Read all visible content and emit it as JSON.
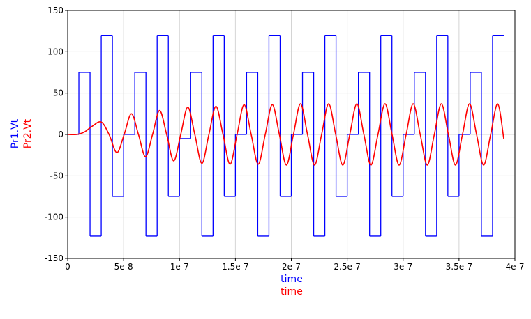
{
  "chart_data": {
    "type": "line",
    "xlim": [
      0,
      4e-07
    ],
    "ylim": [
      -150,
      150
    ],
    "xticks": [
      0,
      {
        "value": 5e-08,
        "label": "5e-8"
      },
      {
        "value": 1e-07,
        "label": "1e-7"
      },
      {
        "value": 1.5e-07,
        "label": "1.5e-7"
      },
      {
        "value": 2e-07,
        "label": "2e-7"
      },
      {
        "value": 2.5e-07,
        "label": "2.5e-7"
      },
      {
        "value": 3e-07,
        "label": "3e-7"
      },
      {
        "value": 3.5e-07,
        "label": "3.5e-7"
      },
      {
        "value": 4e-07,
        "label": "4e-7"
      }
    ],
    "yticks": [
      -150,
      -100,
      -50,
      0,
      50,
      100,
      150
    ],
    "grid": true,
    "series": [
      {
        "name": "Pr1.Vt",
        "x_label": "time",
        "color": "#0000ff",
        "draw": "steps-post",
        "x": [
          0,
          1e-08,
          2e-08,
          3e-08,
          4e-08,
          5e-08,
          6e-08,
          7e-08,
          8e-08,
          9e-08,
          1e-07,
          1.1e-07,
          1.2e-07,
          1.3e-07,
          1.4e-07,
          1.5e-07,
          1.6e-07,
          1.7e-07,
          1.8e-07,
          1.9e-07,
          2e-07,
          2.1e-07,
          2.2e-07,
          2.3e-07,
          2.4e-07,
          2.5e-07,
          2.6e-07,
          2.7e-07,
          2.8e-07,
          2.9e-07,
          3e-07,
          3.1e-07,
          3.2e-07,
          3.3e-07,
          3.4e-07,
          3.5e-07,
          3.6e-07,
          3.7e-07,
          3.8e-07,
          3.9e-07
        ],
        "values": [
          0,
          75,
          -123,
          120,
          -75,
          0,
          75,
          -123,
          120,
          -75,
          -5,
          75,
          -123,
          120,
          -75,
          0,
          75,
          -123,
          120,
          -75,
          0,
          75,
          -123,
          120,
          -75,
          0,
          75,
          -123,
          120,
          -75,
          0,
          75,
          -123,
          120,
          -75,
          0,
          75,
          -123,
          120,
          120
        ]
      },
      {
        "name": "Pr2.Vt",
        "x_label": "time",
        "color": "#ff0000",
        "draw": "smooth",
        "x": [
          0,
          8e-09,
          1.5e-08,
          2.2e-08,
          3e-08,
          3.7e-08,
          4.4e-08,
          5.05e-08,
          5.7e-08,
          6.33e-08,
          6.96e-08,
          7.59e-08,
          8.22e-08,
          8.85e-08,
          9.48e-08,
          1.011e-07,
          1.074e-07,
          1.137e-07,
          1.2e-07,
          1.263e-07,
          1.326e-07,
          1.389e-07,
          1.452e-07,
          1.515e-07,
          1.578e-07,
          1.641e-07,
          1.704e-07,
          1.767e-07,
          1.83e-07,
          1.893e-07,
          1.956e-07,
          2.019e-07,
          2.082e-07,
          2.145e-07,
          2.208e-07,
          2.271e-07,
          2.334e-07,
          2.397e-07,
          2.46e-07,
          2.523e-07,
          2.586e-07,
          2.649e-07,
          2.712e-07,
          2.775e-07,
          2.838e-07,
          2.901e-07,
          2.964e-07,
          3.027e-07,
          3.09e-07,
          3.153e-07,
          3.216e-07,
          3.279e-07,
          3.342e-07,
          3.405e-07,
          3.468e-07,
          3.531e-07,
          3.594e-07,
          3.657e-07,
          3.72e-07,
          3.783e-07,
          3.846e-07,
          3.9e-07
        ],
        "values": [
          0,
          0,
          3,
          10,
          15,
          0,
          -22,
          0,
          25,
          0,
          -27,
          0,
          29,
          0,
          -32,
          0,
          33,
          0,
          -35,
          0,
          34,
          0,
          -36,
          0,
          36,
          0,
          -36,
          0,
          36,
          0,
          -37,
          0,
          37,
          0,
          -37,
          0,
          37,
          0,
          -37,
          0,
          37,
          0,
          -37,
          0,
          37,
          0,
          -37,
          0,
          37,
          0,
          -37,
          0,
          37,
          0,
          -37,
          0,
          37,
          0,
          -37,
          0,
          37,
          -5
        ]
      }
    ]
  }
}
